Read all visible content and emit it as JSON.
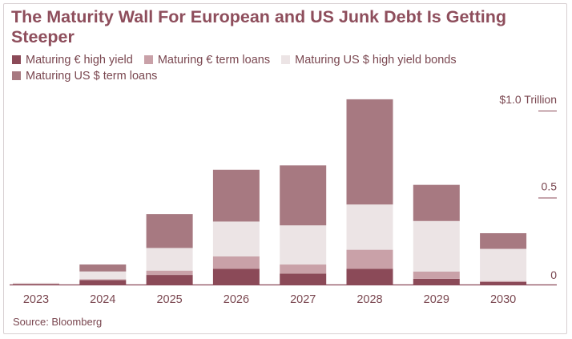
{
  "chart_data": {
    "type": "bar",
    "stacked": true,
    "title": "The Maturity Wall For European and US Junk Debt Is Getting Steeper",
    "xlabel": "",
    "ylabel": "",
    "y_unit_label": "$1.0 Trillion",
    "ylim": [
      0,
      1.0
    ],
    "yticks": [
      {
        "value": 1.0,
        "label": "$1.0 Trillion"
      },
      {
        "value": 0.5,
        "label": "0.5"
      },
      {
        "value": 0,
        "label": "0"
      }
    ],
    "categories": [
      "2023",
      "2024",
      "2025",
      "2026",
      "2027",
      "2028",
      "2029",
      "2030"
    ],
    "series": [
      {
        "name": "Maturing € high yield",
        "color": "#8b4a58",
        "values": [
          0.002,
          0.025,
          0.055,
          0.09,
          0.063,
          0.09,
          0.033,
          0.015
        ]
      },
      {
        "name": "Maturing € term loans",
        "color": "#c9a1a8",
        "values": [
          0.003,
          0.005,
          0.025,
          0.072,
          0.052,
          0.11,
          0.042,
          0.005
        ]
      },
      {
        "name": "Maturing US $ high yield bonds",
        "color": "#ece4e5",
        "values": [
          0.005,
          0.045,
          0.13,
          0.2,
          0.225,
          0.26,
          0.29,
          0.185
        ]
      },
      {
        "name": "Maturing US $ term loans",
        "color": "#a77981",
        "values": [
          0.0,
          0.04,
          0.195,
          0.298,
          0.345,
          0.605,
          0.208,
          0.09
        ]
      }
    ],
    "source": "Source: Bloomberg"
  }
}
